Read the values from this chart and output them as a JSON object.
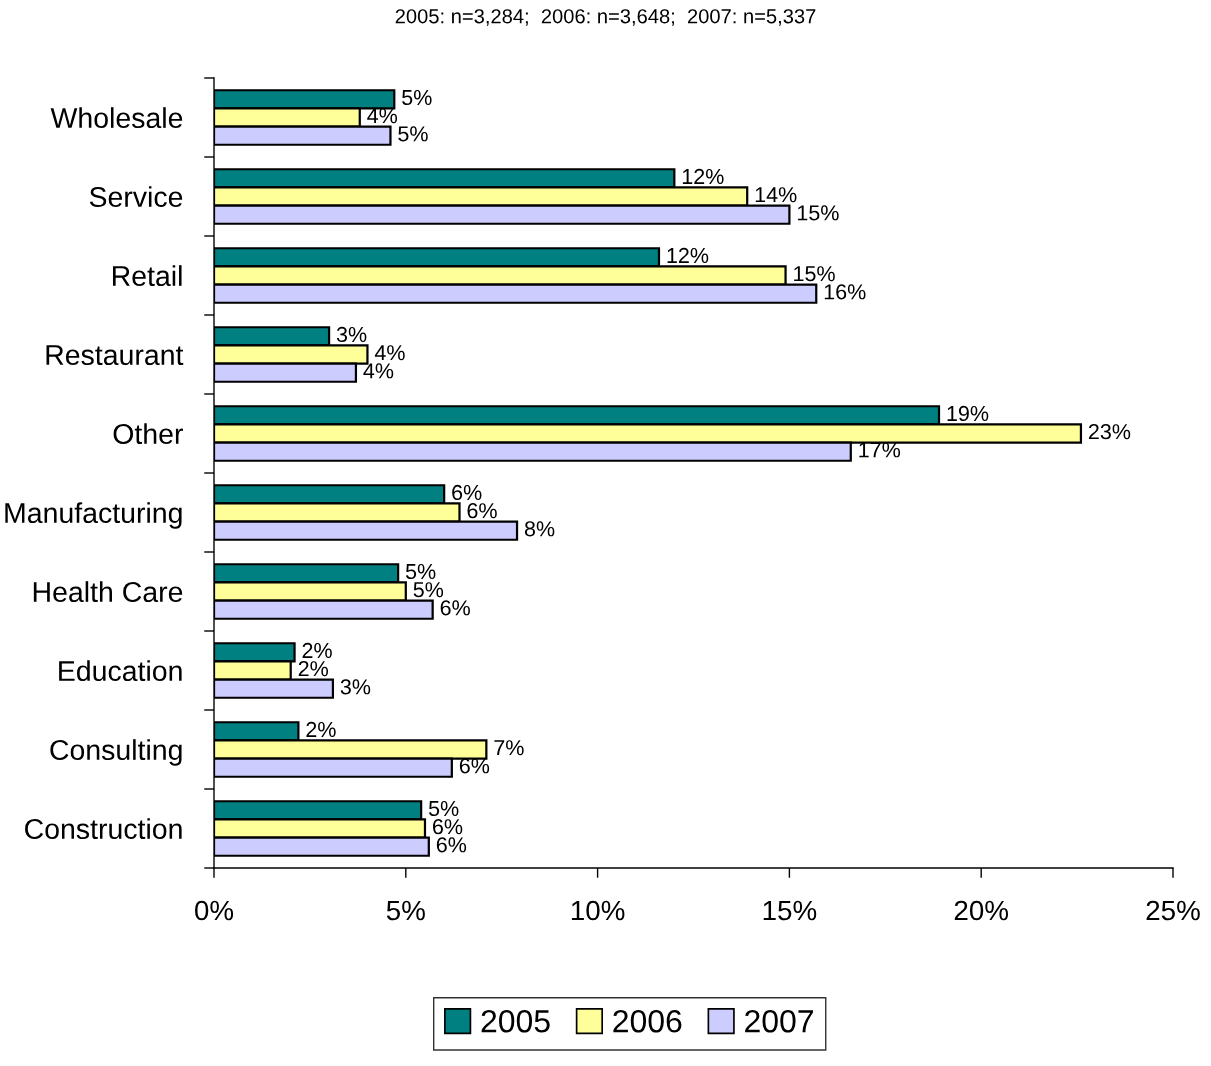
{
  "chart_data": {
    "type": "bar",
    "orientation": "horizontal",
    "title": "2005: n=3,284;  2006: n=3,648;  2007: n=5,337",
    "categories": [
      "Wholesale",
      "Service",
      "Retail",
      "Restaurant",
      "Other",
      "Manufacturing",
      "Health Care",
      "Education",
      "Consulting",
      "Construction"
    ],
    "series": [
      {
        "name": "2005",
        "color": "#008080",
        "values": [
          4.7,
          12.0,
          11.6,
          3.0,
          18.9,
          6.0,
          4.8,
          2.1,
          2.2,
          5.4
        ],
        "value_labels": [
          "5%",
          "12%",
          "12%",
          "3%",
          "19%",
          "6%",
          "5%",
          "2%",
          "2%",
          "5%"
        ]
      },
      {
        "name": "2006",
        "color": "#ffff99",
        "values": [
          3.8,
          13.9,
          14.9,
          4.0,
          22.6,
          6.4,
          5.0,
          2.0,
          7.1,
          5.5
        ],
        "value_labels": [
          "4%",
          "14%",
          "15%",
          "4%",
          "23%",
          "6%",
          "5%",
          "2%",
          "7%",
          "6%"
        ]
      },
      {
        "name": "2007",
        "color": "#ccccff",
        "values": [
          4.6,
          15.0,
          15.7,
          3.7,
          16.6,
          7.9,
          5.7,
          3.1,
          6.2,
          5.6
        ],
        "value_labels": [
          "5%",
          "15%",
          "16%",
          "4%",
          "17%",
          "8%",
          "6%",
          "3%",
          "6%",
          "6%"
        ]
      }
    ],
    "xlim": [
      0,
      25
    ],
    "xticks": [
      {
        "value": 0,
        "label": "0%"
      },
      {
        "value": 5,
        "label": "5%"
      },
      {
        "value": 10,
        "label": "10%"
      },
      {
        "value": 15,
        "label": "15%"
      },
      {
        "value": 20,
        "label": "20%"
      },
      {
        "value": 25,
        "label": "25%"
      }
    ],
    "legend": "bottom"
  }
}
